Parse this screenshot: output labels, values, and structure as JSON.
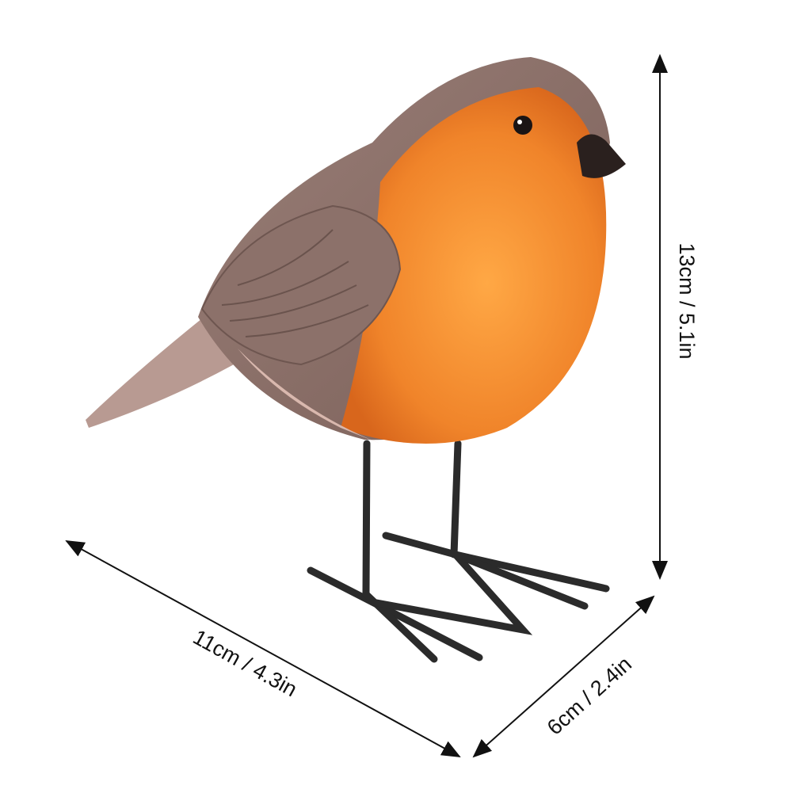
{
  "dimensions": {
    "height_label": "13cm / 5.1in",
    "length_label": "11cm / 4.3in",
    "width_label": "6cm / 2.4in"
  },
  "colors": {
    "breast": "#f08a2a",
    "back": "#8a6e66",
    "legs": "#2a2a2a",
    "background": "#ffffff"
  }
}
